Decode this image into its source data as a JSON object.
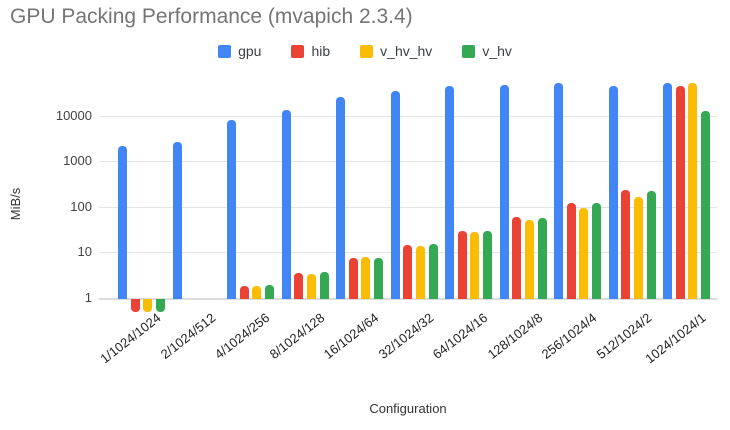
{
  "chart_data": {
    "type": "bar",
    "title": "GPU Packing Performance (mvapich 2.3.4)",
    "xlabel": "Configuration",
    "ylabel": "MiB/s",
    "y_scale": "log",
    "y_ticks": [
      1,
      10,
      100,
      1000,
      10000
    ],
    "ylim": [
      0.45,
      66000
    ],
    "grid": true,
    "legend_position": "top-center",
    "title_color": "#757575",
    "categories": [
      "1/1024/1024",
      "2/1024/512",
      "4/1024/256",
      "8/1024/128",
      "16/1024/64",
      "32/1024/32",
      "64/1024/16",
      "128/1024/8",
      "256/1024/4",
      "512/1024/2",
      "1024/1024/1"
    ],
    "series": [
      {
        "name": "gpu",
        "color": "#4285F4",
        "values": [
          2200,
          2600,
          7900,
          13500,
          25000,
          35000,
          44000,
          46000,
          51000,
          45500,
          52000
        ]
      },
      {
        "name": "hib",
        "color": "#EA4335",
        "values": [
          0.52,
          null,
          1.8,
          3.5,
          7.5,
          14.3,
          29,
          60,
          120,
          237,
          44000
        ]
      },
      {
        "name": "v_hv_hv",
        "color": "#FBBC04",
        "values": [
          0.52,
          null,
          1.8,
          3.4,
          7.8,
          13.9,
          27.5,
          52,
          95,
          164,
          52000
        ]
      },
      {
        "name": "v_hv",
        "color": "#34A853",
        "values": [
          0.52,
          null,
          1.9,
          3.7,
          7.5,
          15.3,
          30,
          57,
          121,
          218,
          12900
        ]
      }
    ]
  }
}
